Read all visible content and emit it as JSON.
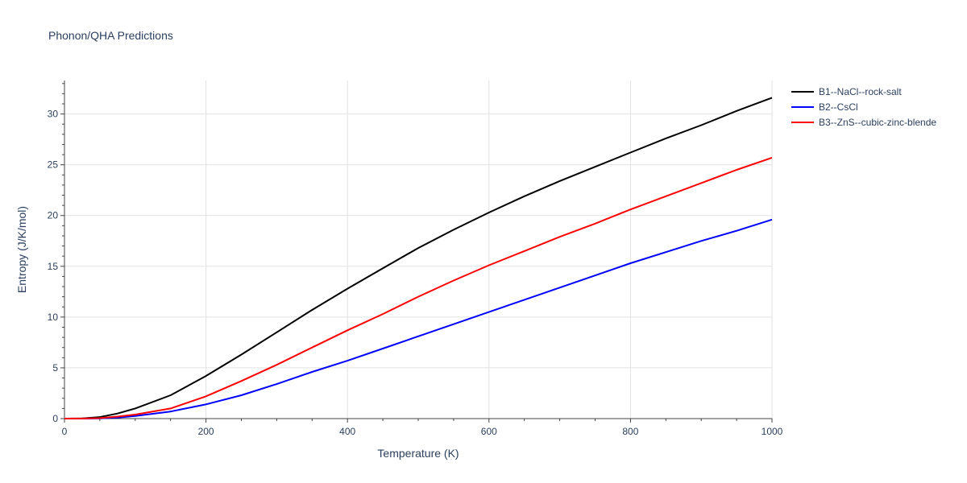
{
  "chart_data": {
    "type": "line",
    "title": "Phonon/QHA Predictions",
    "xlabel": "Temperature (K)",
    "ylabel": "Entropy (J/K/mol)",
    "xlim": [
      0,
      1000
    ],
    "ylim": [
      0,
      33.3
    ],
    "x_ticks": [
      0,
      200,
      400,
      600,
      800,
      1000
    ],
    "y_ticks": [
      0,
      5,
      10,
      15,
      20,
      25,
      30
    ],
    "grid": true,
    "legend_position": "top-right",
    "series": [
      {
        "name": "B1--NaCl--rock-salt",
        "color": "#000000",
        "x": [
          0,
          25,
          50,
          75,
          100,
          150,
          200,
          250,
          300,
          350,
          400,
          450,
          500,
          550,
          600,
          650,
          700,
          750,
          800,
          850,
          900,
          950,
          1000
        ],
        "y": [
          0,
          0.02,
          0.15,
          0.5,
          1.0,
          2.3,
          4.2,
          6.3,
          8.5,
          10.7,
          12.8,
          14.8,
          16.8,
          18.6,
          20.3,
          21.9,
          23.4,
          24.8,
          26.2,
          27.6,
          28.9,
          30.3,
          31.6
        ]
      },
      {
        "name": "B2--CsCl",
        "color": "#0000ff",
        "x": [
          0,
          25,
          50,
          75,
          100,
          150,
          200,
          250,
          300,
          350,
          400,
          450,
          500,
          550,
          600,
          650,
          700,
          750,
          800,
          850,
          900,
          950,
          1000
        ],
        "y": [
          0,
          0,
          0.02,
          0.1,
          0.25,
          0.7,
          1.4,
          2.3,
          3.4,
          4.6,
          5.7,
          6.9,
          8.1,
          9.3,
          10.5,
          11.7,
          12.9,
          14.1,
          15.3,
          16.4,
          17.5,
          18.5,
          19.6
        ]
      },
      {
        "name": "B3--ZnS--cubic-zinc-blende",
        "color": "#ff0000",
        "x": [
          0,
          25,
          50,
          75,
          100,
          150,
          200,
          250,
          300,
          350,
          400,
          450,
          500,
          550,
          600,
          650,
          700,
          750,
          800,
          850,
          900,
          950,
          1000
        ],
        "y": [
          0,
          0.01,
          0.05,
          0.2,
          0.4,
          1.0,
          2.2,
          3.7,
          5.3,
          7.0,
          8.7,
          10.3,
          12.0,
          13.6,
          15.1,
          16.5,
          17.9,
          19.2,
          20.6,
          21.9,
          23.2,
          24.5,
          25.7
        ]
      }
    ]
  }
}
